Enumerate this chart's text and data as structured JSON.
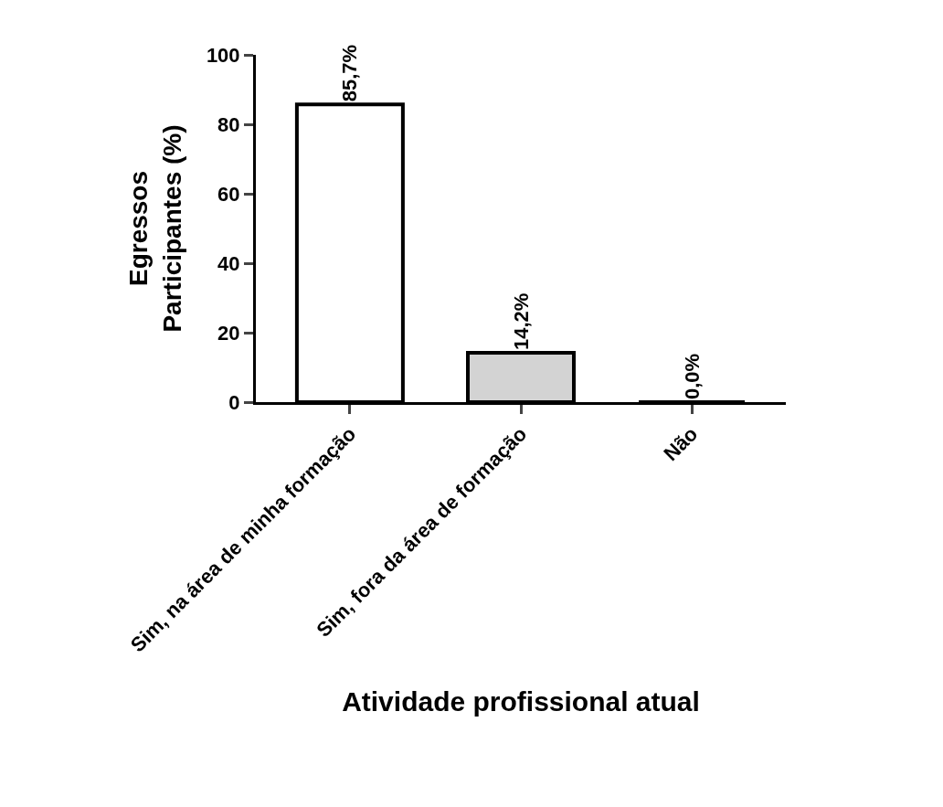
{
  "chart_data": {
    "type": "bar",
    "xlabel": "Atividade profissional atual",
    "ylabel": "Egressos\nParticipantes (%)",
    "categories": [
      "Sim, na área de minha formação",
      "Sim, fora da área de formação",
      "Não"
    ],
    "values": [
      85.7,
      14.2,
      0.0
    ],
    "colors": [
      "#ffffff",
      "#d3d3d3",
      "#000000"
    ],
    "value_labels": [
      "85,7%",
      "14,2%",
      "0,0%"
    ],
    "ylim": [
      0,
      100
    ],
    "yticks": [
      0,
      20,
      40,
      60,
      80,
      100
    ],
    "legend": false
  }
}
